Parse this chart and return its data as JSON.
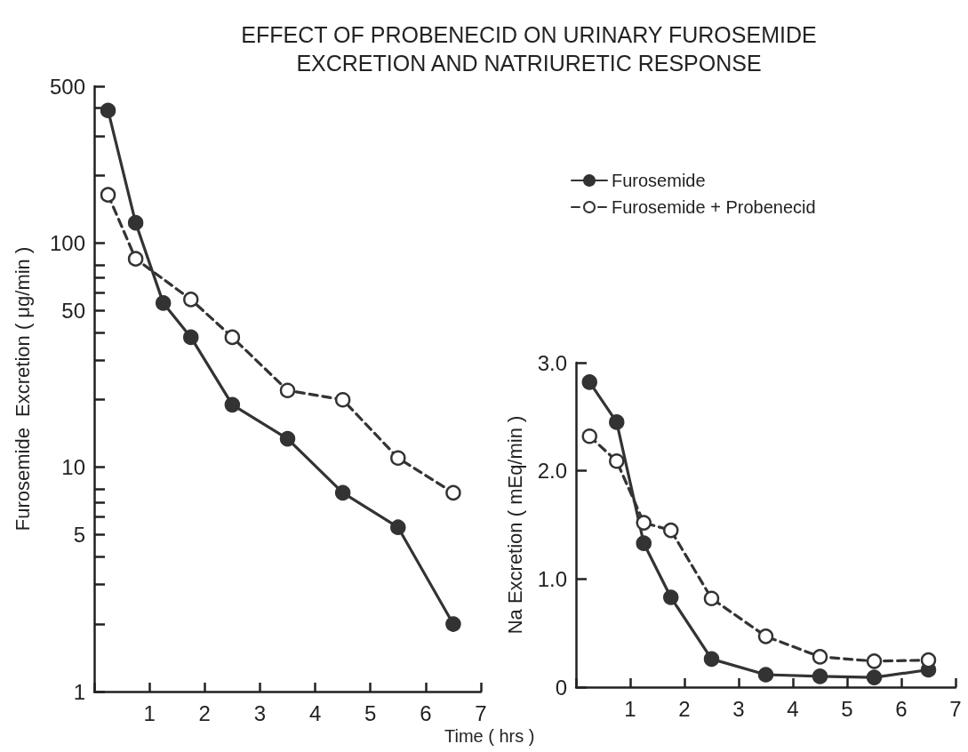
{
  "chart_data": [
    {
      "type": "line",
      "title": "EFFECT OF PROBENECID ON URINARY FUROSEMIDE\nEXCRETION AND NATRIURETIC RESPONSE",
      "xlabel": "Time ( hrs )",
      "ylabel": "Furosemide  Excretion ( μg/min )",
      "log": true,
      "marker": "circle",
      "grid": false,
      "xlim": [
        0,
        7
      ],
      "xticks": [
        {
          "value": 0,
          "label": null
        },
        1,
        2,
        3,
        4,
        5,
        6,
        7
      ],
      "ylim": [
        1,
        500
      ],
      "yticks": [
        1,
        {
          "value": 2,
          "label": null
        },
        {
          "value": 3,
          "label": null
        },
        {
          "value": 4,
          "label": null
        },
        5,
        {
          "value": 6,
          "label": null
        },
        {
          "value": 7,
          "label": null
        },
        {
          "value": 8,
          "label": null
        },
        10,
        {
          "value": 20,
          "label": null
        },
        {
          "value": 30,
          "label": null
        },
        {
          "value": 40,
          "label": null
        },
        50,
        {
          "value": 60,
          "label": null
        },
        {
          "value": 70,
          "label": null
        },
        {
          "value": 80,
          "label": null
        },
        100,
        {
          "value": 200,
          "label": null
        },
        {
          "value": 300,
          "label": null
        },
        {
          "value": 400,
          "label": null
        },
        500
      ],
      "series": [
        {
          "color": "#333333",
          "line_style": "solid",
          "x": [
            0.25,
            0.75,
            1.25,
            1.75,
            2.5,
            3.5,
            4.5,
            5.5,
            6.5
          ],
          "values": [
            390,
            123,
            54,
            38,
            19,
            13.4,
            7.7,
            5.4,
            2.0
          ]
        },
        {
          "color": "#333333",
          "line_style": "dashed",
          "x": [
            0.25,
            0.75,
            1.75,
            2.5,
            3.5,
            4.5,
            5.5,
            6.5
          ],
          "values": [
            164,
            85,
            56,
            38,
            22,
            20,
            11,
            7.7
          ]
        }
      ]
    },
    {
      "type": "line",
      "ylabel": "Na Excretion ( mEq/min )",
      "marker": "circle",
      "grid": false,
      "legend": "top",
      "xlim": [
        0,
        7
      ],
      "xticks": [
        {
          "value": 0,
          "label": null
        },
        1,
        2,
        3,
        4,
        5,
        6,
        7
      ],
      "ylim": [
        0,
        3
      ],
      "yticks": [
        0,
        {
          "value": 1,
          "label": "1.0"
        },
        {
          "value": 2,
          "label": "2.0"
        },
        {
          "value": 3,
          "label": "3.0"
        }
      ],
      "series": [
        {
          "name": "Furosemide",
          "color": "#333333",
          "line_style": "solid",
          "x": [
            0.25,
            0.75,
            1.25,
            1.75,
            2.5,
            3.5,
            4.5,
            5.5,
            6.5
          ],
          "values": [
            2.82,
            2.45,
            1.33,
            0.83,
            0.26,
            0.115,
            0.1,
            0.09,
            0.16
          ]
        },
        {
          "name": "Furosemide + Probenecid",
          "color": "#333333",
          "line_style": "dashed",
          "x": [
            0.25,
            0.75,
            1.25,
            1.75,
            2.5,
            3.5,
            4.5,
            5.5,
            6.5
          ],
          "values": [
            2.32,
            2.09,
            1.52,
            1.45,
            0.82,
            0.47,
            0.28,
            0.24,
            0.25
          ]
        }
      ]
    }
  ]
}
